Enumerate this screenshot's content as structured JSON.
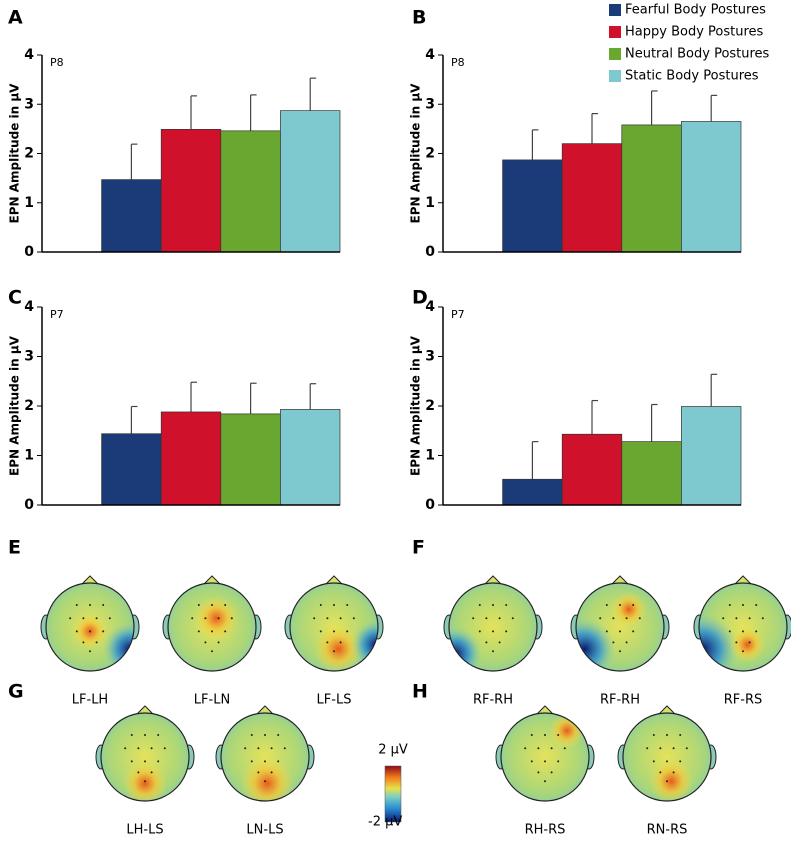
{
  "chart_data": [
    {
      "type": "bar",
      "panel": "A",
      "electrode": "P8",
      "y_label": "EPN Amplitude in µV",
      "ylim": [
        0,
        4
      ],
      "yticks": [
        0,
        1,
        2,
        3,
        4
      ],
      "values": [
        1.47,
        2.49,
        2.46,
        2.87
      ],
      "errors": [
        0.72,
        0.68,
        0.73,
        0.66
      ]
    },
    {
      "type": "bar",
      "panel": "B",
      "electrode": "P8",
      "y_label": "EPN Amplitude in µV",
      "ylim": [
        0,
        4
      ],
      "yticks": [
        0,
        1,
        2,
        3,
        4
      ],
      "values": [
        1.87,
        2.2,
        2.58,
        2.65
      ],
      "errors": [
        0.61,
        0.61,
        0.69,
        0.53
      ]
    },
    {
      "type": "bar",
      "panel": "C",
      "electrode": "P7",
      "y_label": "EPN Amplitude in µV",
      "ylim": [
        0,
        4
      ],
      "yticks": [
        0,
        1,
        2,
        3,
        4
      ],
      "values": [
        1.44,
        1.88,
        1.84,
        1.93
      ],
      "errors": [
        0.55,
        0.6,
        0.62,
        0.52
      ]
    },
    {
      "type": "bar",
      "panel": "D",
      "electrode": "P7",
      "y_label": "EPN Amplitude in µV",
      "ylim": [
        0,
        4
      ],
      "yticks": [
        0,
        1,
        2,
        3,
        4
      ],
      "values": [
        0.52,
        1.43,
        1.28,
        1.99
      ],
      "errors": [
        0.76,
        0.68,
        0.75,
        0.65
      ]
    }
  ],
  "legend": [
    {
      "name": "Fearful Body Postures",
      "color": "#1b3a78"
    },
    {
      "name": "Happy Body Postures",
      "color": "#d0112b"
    },
    {
      "name": "Neutral Body Postures",
      "color": "#6aa731"
    },
    {
      "name": "Static Body Postures",
      "color": "#7ec8d0"
    }
  ],
  "topo_panels": [
    {
      "letter": "E",
      "maps": [
        "LF-LH",
        "LF-LN",
        "LF-LS"
      ]
    },
    {
      "letter": "F",
      "maps": [
        "RF-RH",
        "RF-RH",
        "RF-RS"
      ]
    },
    {
      "letter": "G",
      "maps": [
        "LH-LS",
        "LN-LS"
      ]
    },
    {
      "letter": "H",
      "maps": [
        "RH-RS",
        "RN-RS"
      ]
    }
  ],
  "colorbar": {
    "max": "2 µV",
    "min": "-2 µV"
  }
}
